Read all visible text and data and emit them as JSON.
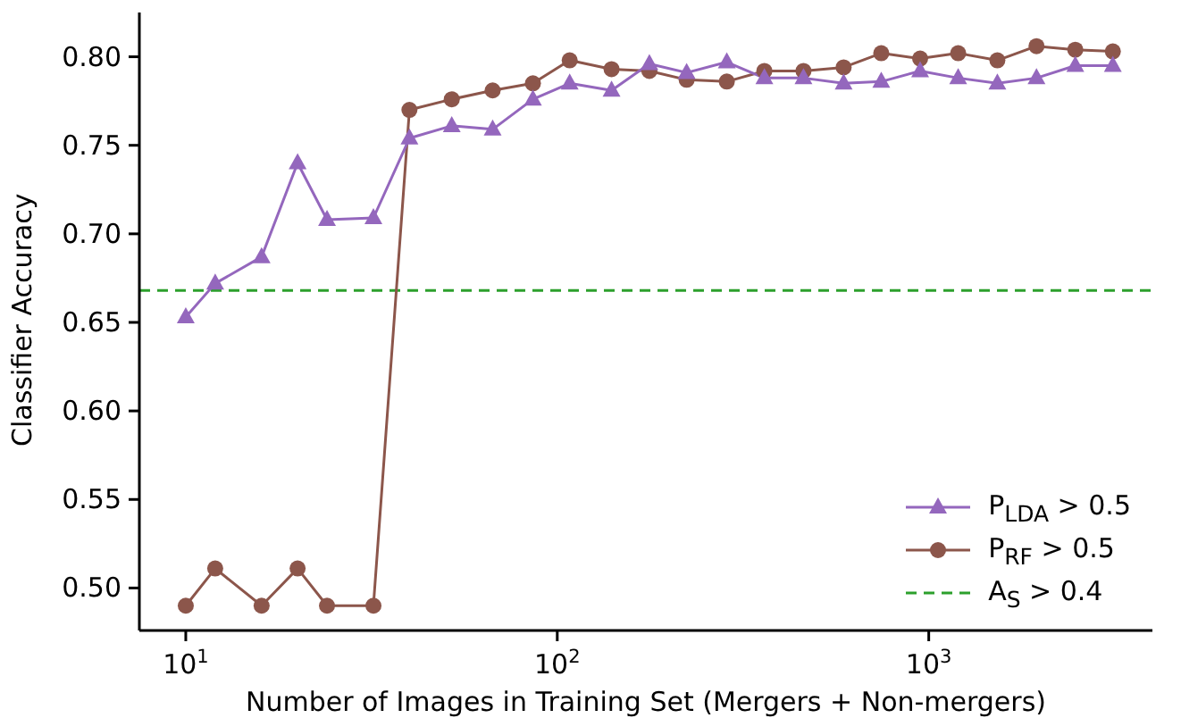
{
  "chart_data": {
    "type": "line",
    "xlabel": "Number of Images in Training Set (Mergers + Non-mergers)",
    "ylabel": "Classifier Accuracy",
    "x": [
      10,
      12,
      16,
      20,
      24,
      32,
      40,
      52,
      67,
      86,
      108,
      140,
      177,
      223,
      286,
      361,
      460,
      590,
      745,
      948,
      1200,
      1530,
      1950,
      2480,
      3130
    ],
    "series": [
      {
        "name": "P$_{LDA}$ > 0.5",
        "color": "#9467bd",
        "marker": "triangle",
        "values": [
          0.653,
          0.672,
          0.687,
          0.74,
          0.708,
          0.709,
          0.754,
          0.761,
          0.759,
          0.776,
          0.785,
          0.781,
          0.796,
          0.791,
          0.797,
          0.788,
          0.788,
          0.785,
          0.786,
          0.792,
          0.788,
          0.785,
          0.788,
          0.795,
          0.795
        ]
      },
      {
        "name": "P$_{RF}$ > 0.5",
        "color": "#8c564b",
        "marker": "circle",
        "values": [
          0.49,
          0.511,
          0.49,
          0.511,
          0.49,
          0.49,
          0.77,
          0.776,
          0.781,
          0.785,
          0.798,
          0.793,
          0.792,
          0.787,
          0.786,
          0.792,
          0.792,
          0.794,
          0.802,
          0.799,
          0.802,
          0.798,
          0.806,
          0.804,
          0.803
        ]
      }
    ],
    "ref_lines": [
      {
        "axis": "y",
        "value": 0.668,
        "label": "A$_{S}$ > 0.4",
        "color": "#2ca02c",
        "line_style": "dashed"
      }
    ],
    "log": "x",
    "xlim": [
      7.5,
      4000
    ],
    "xticks": [
      {
        "value": 10,
        "label": "10$^{1}$"
      },
      {
        "value": 100,
        "label": "10$^{2}$"
      },
      {
        "value": 1000,
        "label": "10$^{3}$"
      }
    ],
    "ylim": [
      0.476,
      0.825
    ],
    "yticks": [
      {
        "value": 0.5,
        "label": "0.50"
      },
      {
        "value": 0.55,
        "label": "0.55"
      },
      {
        "value": 0.6,
        "label": "0.60"
      },
      {
        "value": 0.65,
        "label": "0.65"
      },
      {
        "value": 0.7,
        "label": "0.70"
      },
      {
        "value": 0.75,
        "label": "0.75"
      },
      {
        "value": 0.8,
        "label": "0.80"
      }
    ],
    "grid": false,
    "legend": "bottom right"
  }
}
